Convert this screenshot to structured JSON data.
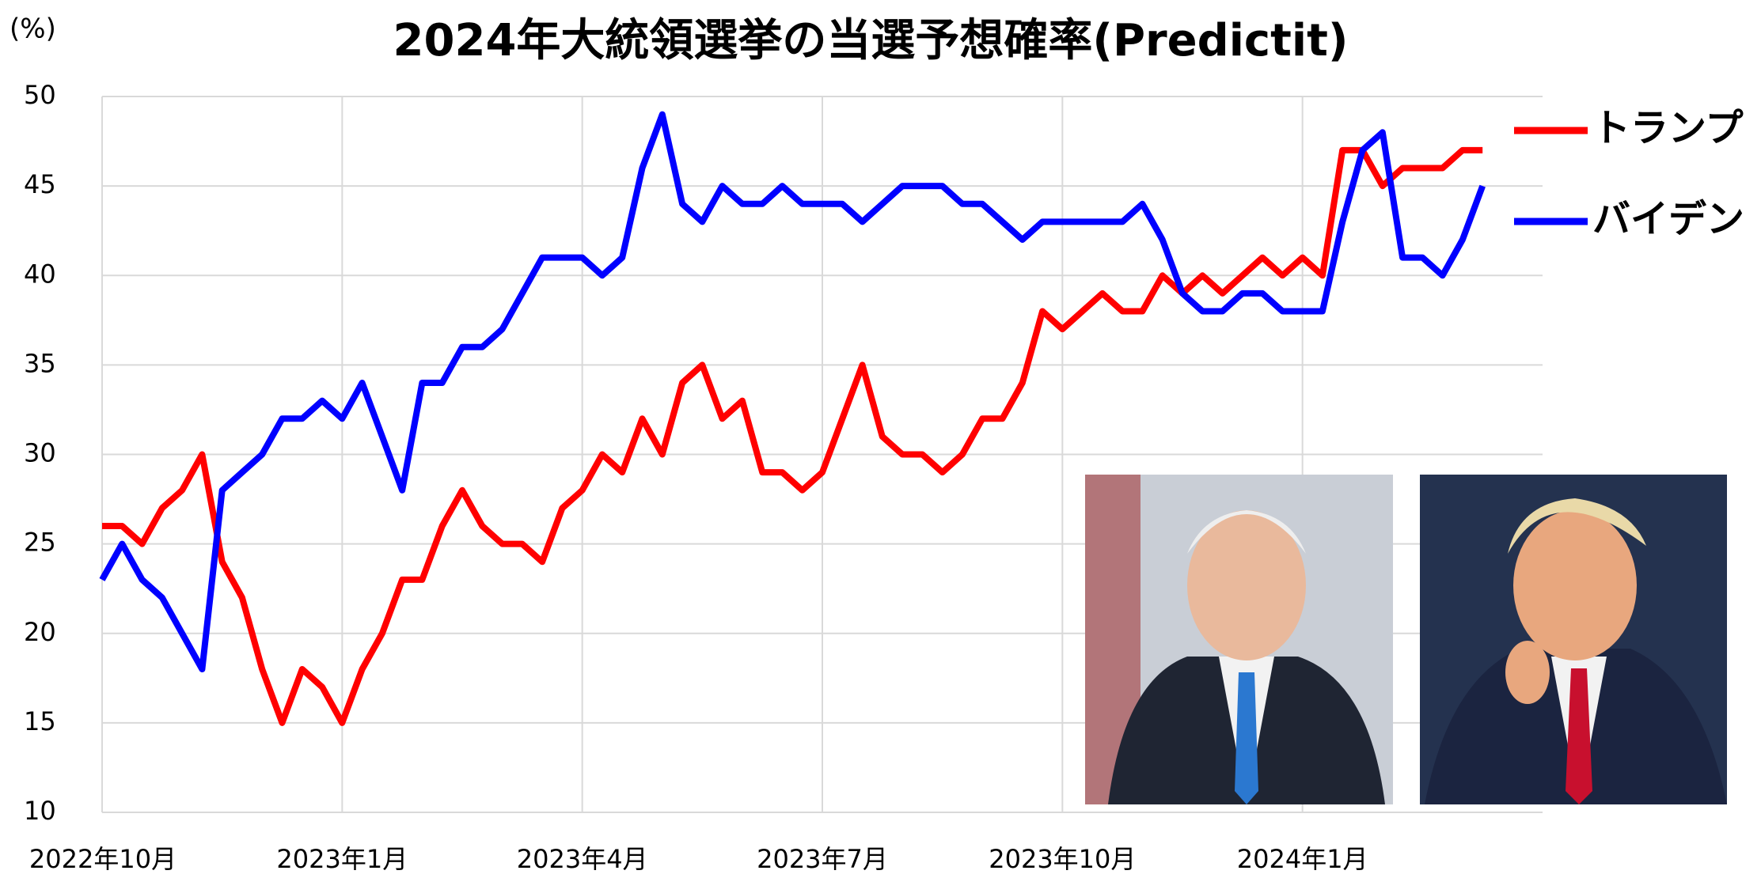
{
  "chart_data": {
    "type": "line",
    "title": "2024年大統領選挙の当選予想確率(Predictit)",
    "y_label": "(%)",
    "categories": [
      "2022年10月",
      null,
      null,
      null,
      null,
      null,
      null,
      null,
      null,
      null,
      null,
      null,
      "2023年1月",
      null,
      null,
      null,
      null,
      null,
      null,
      null,
      null,
      null,
      null,
      null,
      "2023年4月",
      null,
      null,
      null,
      null,
      null,
      null,
      null,
      null,
      null,
      null,
      null,
      "2023年7月",
      null,
      null,
      null,
      null,
      null,
      null,
      null,
      null,
      null,
      null,
      null,
      "2023年10月",
      null,
      null,
      null,
      null,
      null,
      null,
      null,
      null,
      null,
      null,
      null,
      "2024年1月",
      null,
      null,
      null,
      null,
      null,
      null,
      null,
      null,
      null
    ],
    "series": [
      {
        "name": "トランプ",
        "color": "#ff0000",
        "values": [
          26,
          26,
          25,
          27,
          28,
          30,
          24,
          22,
          18,
          15,
          18,
          17,
          15,
          18,
          20,
          23,
          23,
          26,
          28,
          26,
          25,
          25,
          24,
          27,
          28,
          30,
          29,
          32,
          30,
          34,
          35,
          32,
          33,
          29,
          29,
          28,
          29,
          32,
          35,
          31,
          30,
          30,
          29,
          30,
          32,
          32,
          34,
          38,
          37,
          38,
          39,
          38,
          38,
          40,
          39,
          40,
          39,
          40,
          41,
          40,
          41,
          40,
          47,
          47,
          45,
          46,
          46,
          46,
          47,
          47
        ]
      },
      {
        "name": "バイデン",
        "color": "#0000ff",
        "values": [
          23,
          25,
          23,
          22,
          20,
          18,
          28,
          29,
          30,
          32,
          32,
          33,
          32,
          34,
          31,
          28,
          34,
          34,
          36,
          36,
          37,
          39,
          41,
          41,
          41,
          40,
          41,
          46,
          49,
          44,
          43,
          45,
          44,
          44,
          45,
          44,
          44,
          44,
          43,
          44,
          45,
          45,
          45,
          44,
          44,
          43,
          42,
          43,
          43,
          43,
          43,
          43,
          44,
          42,
          39,
          38,
          38,
          39,
          39,
          38,
          38,
          38,
          43,
          47,
          48,
          41,
          41,
          40,
          42,
          45
        ]
      }
    ],
    "ylim": [
      10,
      50
    ],
    "yticks": [
      10,
      15,
      20,
      25,
      30,
      35,
      40,
      45,
      50
    ],
    "grid": true
  }
}
